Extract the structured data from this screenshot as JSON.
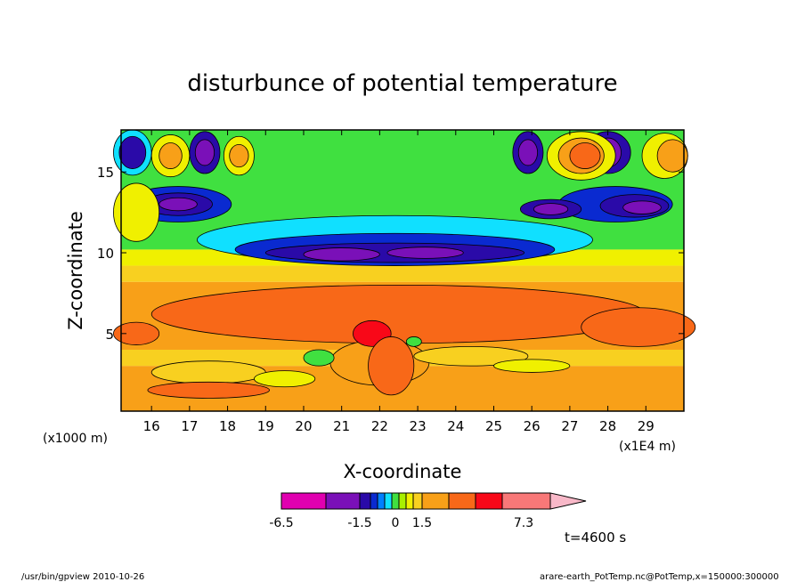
{
  "chart_data": {
    "type": "heatmap",
    "title": "disturbunce of potential temperature",
    "xlabel": "X-coordinate",
    "ylabel": "Z-coordinate",
    "x_unit_label": "(x1E4 m)",
    "y_unit_label": "(x1000 m)",
    "xlim": [
      15.2,
      30.0
    ],
    "ylim": [
      0.2,
      17.6
    ],
    "x_ticks": [
      "16",
      "17",
      "18",
      "19",
      "20",
      "21",
      "22",
      "23",
      "24",
      "25",
      "26",
      "27",
      "28",
      "29"
    ],
    "y_ticks": [
      "5",
      "10",
      "15"
    ],
    "colorbar": {
      "colors": [
        "#e000b0",
        "#7a10b8",
        "#2a0aa8",
        "#0a2ad0",
        "#0080ff",
        "#10e0ff",
        "#40e040",
        "#a8f000",
        "#f0f000",
        "#f8d020",
        "#f8a018",
        "#f86818",
        "#f80818",
        "#f87878",
        "#f8b8c8"
      ],
      "tick_labels": [
        "-6.5",
        "-1.5",
        "0",
        "1.5",
        "7.3"
      ]
    },
    "time_label": "t=4600 s",
    "program_label": "/usr/bin/gpview   2010-10-26",
    "file_label": "arare-earth_PotTemp.nc@PotTemp,x=150000:300000"
  }
}
